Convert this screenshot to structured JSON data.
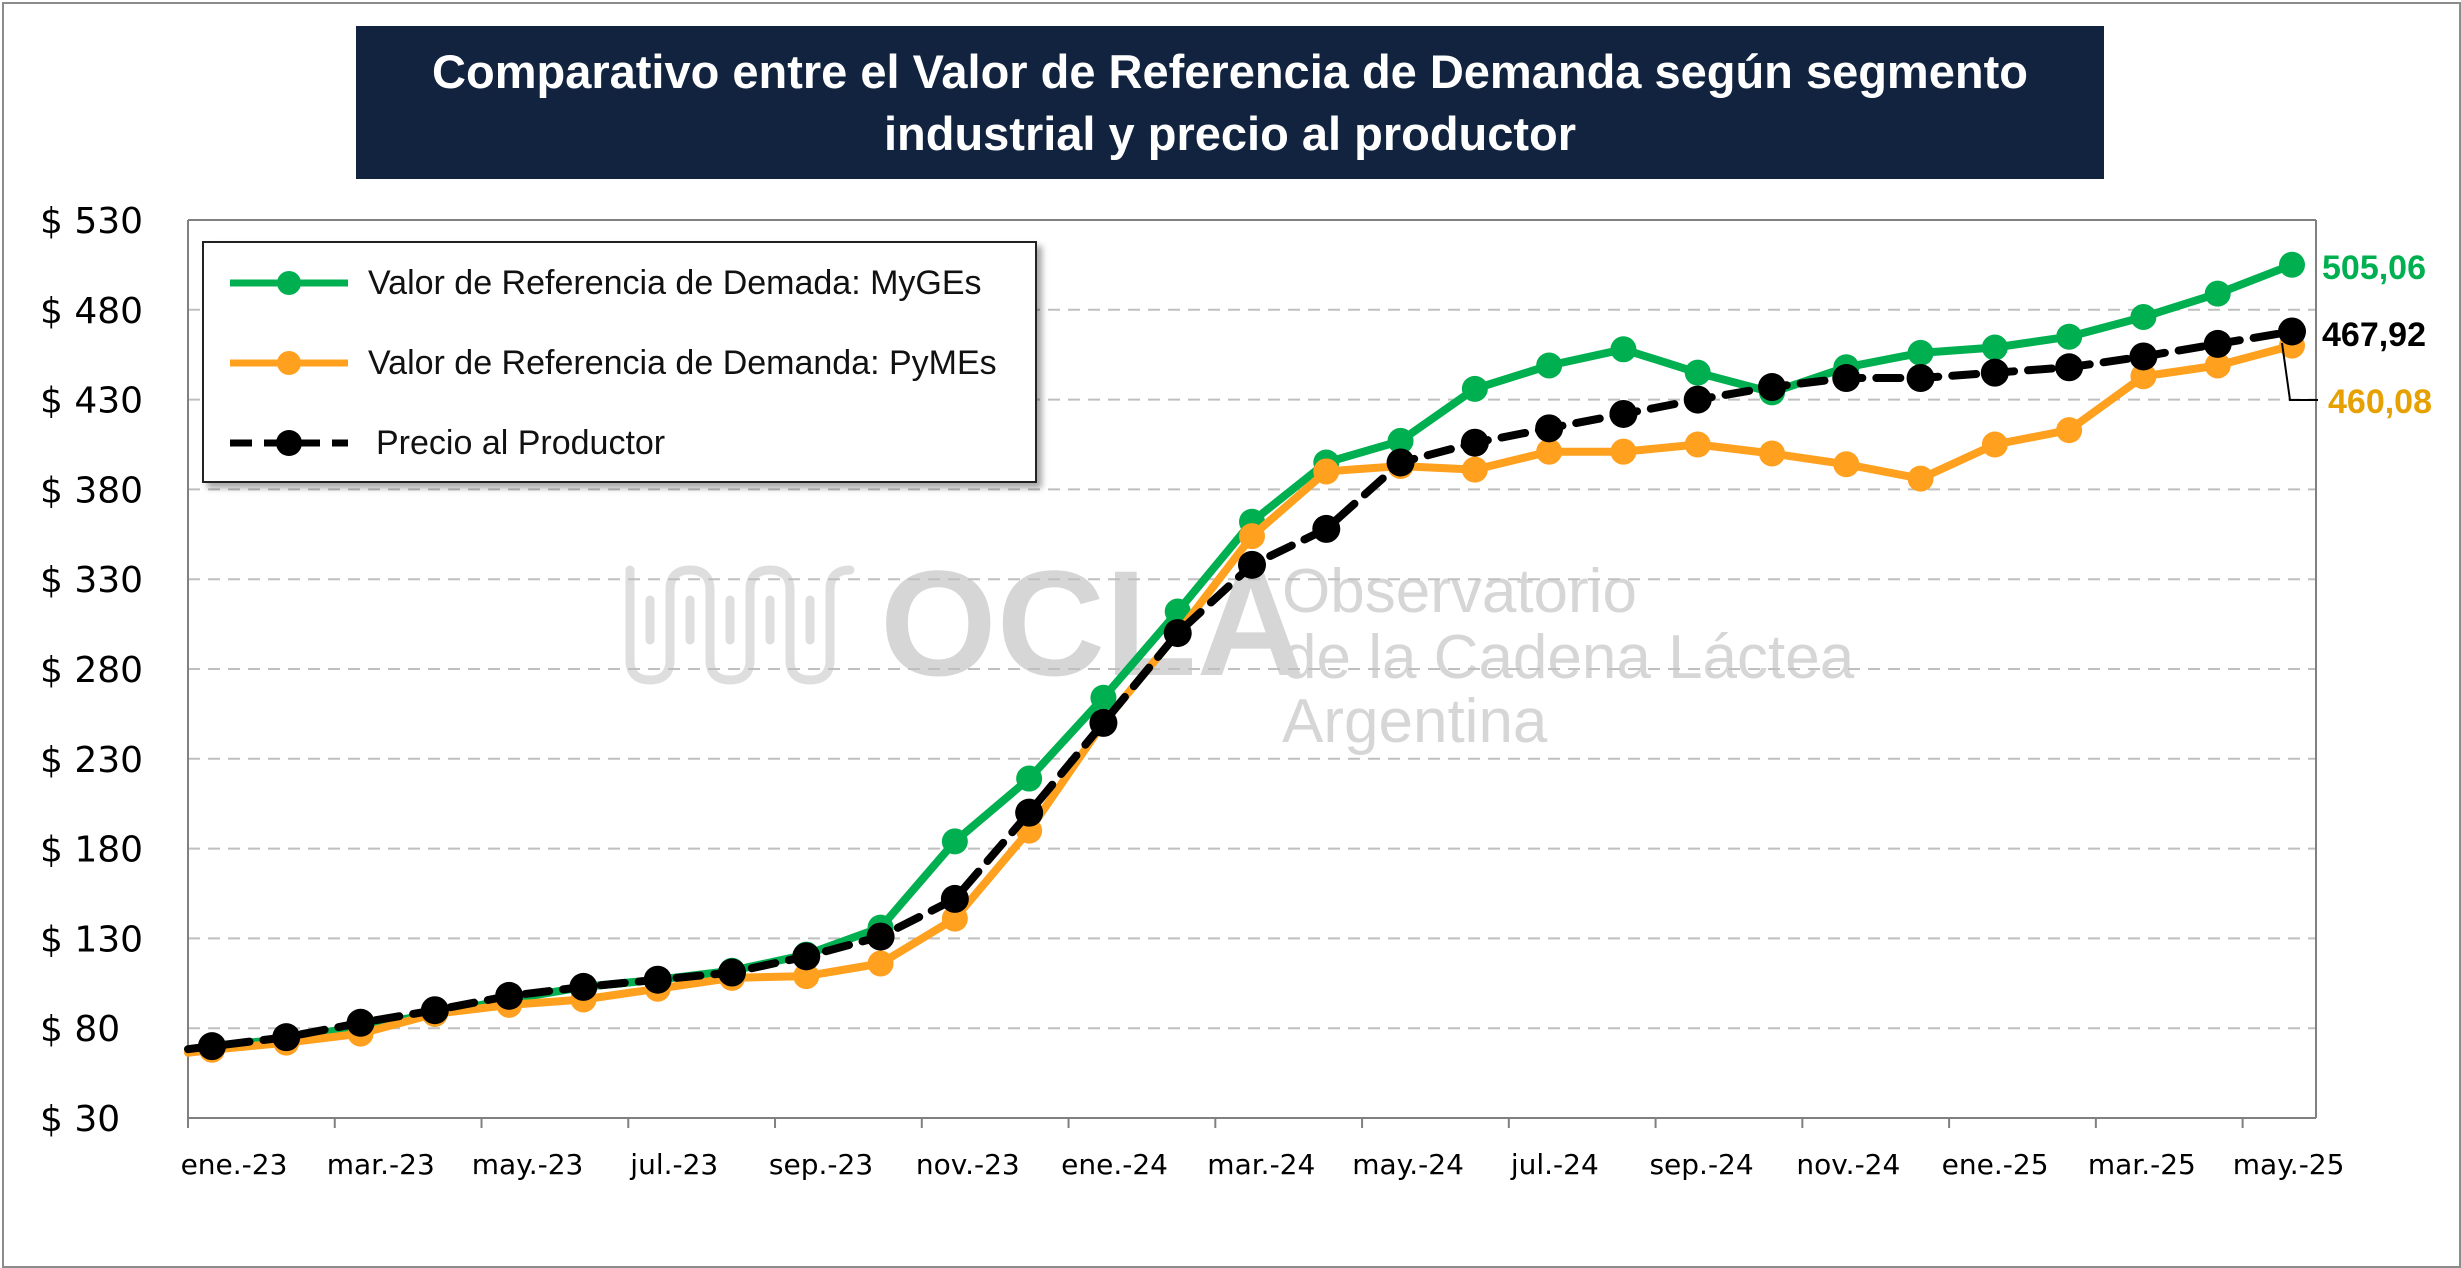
{
  "title": {
    "line1": "Comparativo entre el Valor de Referencia de Demanda según segmento",
    "line2": "industrial y precio al productor"
  },
  "watermark": {
    "logo_text": "OCLA",
    "line1": "Observatorio",
    "line2": "de la Cadena Láctea",
    "line3": "Argentina"
  },
  "legend": {
    "placement": "top-left",
    "items": [
      "Valor de Referencia de Demada: MyGEs",
      "Valor de Referencia de Demanda: PyMEs",
      "Precio al Productor"
    ]
  },
  "end_labels": {
    "myges": "505,06",
    "productor": "467,92",
    "pymes": "460,08"
  },
  "colors": {
    "myges": "#00b050",
    "pymes": "#ffa01e",
    "productor": "#000000",
    "title_bg": "#12233f",
    "pymes_label": "#e6a000"
  },
  "chart_data": {
    "type": "line",
    "title": "Comparativo entre el Valor de Referencia de Demanda según segmento industrial y precio al productor",
    "ylim": [
      30,
      530
    ],
    "yticks": [
      30,
      80,
      130,
      180,
      230,
      280,
      330,
      380,
      430,
      480,
      530
    ],
    "ytick_labels": [
      "$ 30",
      "$ 80",
      "$ 130",
      "$ 180",
      "$ 230",
      "$ 280",
      "$ 330",
      "$ 380",
      "$ 430",
      "$ 480",
      "$ 530"
    ],
    "xtick_labels": [
      "ene.-23",
      "mar.-23",
      "may.-23",
      "jul.-23",
      "sep.-23",
      "nov.-23",
      "ene.-24",
      "mar.-24",
      "may.-24",
      "jul.-24",
      "sep.-24",
      "nov.-24",
      "ene.-25",
      "mar.-25",
      "may.-25"
    ],
    "grid": "horizontal dashed",
    "categories": [
      "ene.-23",
      "feb.-23",
      "mar.-23",
      "abr.-23",
      "may.-23",
      "jun.-23",
      "jul.-23",
      "ago.-23",
      "sep.-23",
      "oct.-23",
      "nov.-23",
      "dic.-23",
      "ene.-24",
      "feb.-24",
      "mar.-24",
      "abr.-24",
      "may.-24",
      "jun.-24",
      "jul.-24",
      "ago.-24",
      "sep.-24",
      "oct.-24",
      "nov.-24",
      "dic.-24",
      "ene.-25",
      "feb.-25",
      "mar.-25",
      "abr.-25",
      "may.-25"
    ],
    "series": [
      {
        "name": "Valor de Referencia de Demada: MyGEs",
        "style": "solid",
        "values": [
          70,
          74,
          81,
          88,
          96,
          103,
          107,
          112,
          121,
          136,
          184,
          219,
          264,
          312,
          362,
          395,
          407,
          436,
          449,
          458,
          445,
          434,
          448,
          456,
          459,
          465,
          476,
          489,
          505.06
        ]
      },
      {
        "name": "Valor de Referencia de Demanda: PyMEs",
        "style": "solid",
        "values": [
          68,
          72,
          77,
          88,
          93,
          96,
          102,
          108,
          109,
          116,
          141,
          190,
          250,
          300,
          354,
          390,
          393,
          391,
          401,
          401,
          405,
          400,
          394,
          386,
          405,
          413,
          443,
          449,
          460.08
        ]
      },
      {
        "name": "Precio al Productor",
        "style": "dashed",
        "values": [
          70,
          75,
          83,
          90,
          98,
          103,
          107,
          111,
          120,
          131,
          152,
          200,
          250,
          300,
          338,
          358,
          395,
          406,
          414,
          422,
          430,
          437,
          442,
          442,
          445,
          448,
          454,
          461,
          467.92
        ]
      }
    ]
  }
}
